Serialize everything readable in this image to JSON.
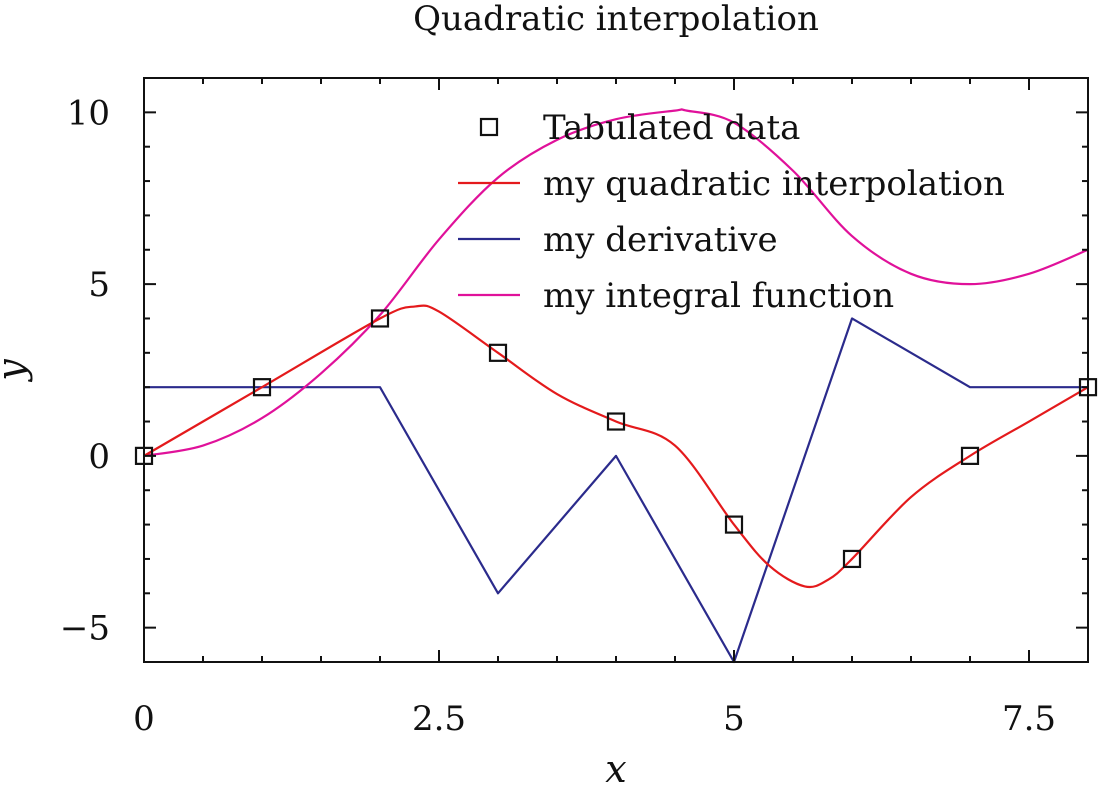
{
  "chart_data": {
    "type": "line",
    "title": "Quadratic interpolation",
    "xlabel": "x",
    "ylabel": "y",
    "xlim": [
      0,
      8
    ],
    "ylim": [
      -6,
      11
    ],
    "xticks": [
      0,
      2.5,
      5,
      7.5
    ],
    "xtick_labels": [
      "0",
      "2.5",
      "5",
      "7.5"
    ],
    "yticks": [
      -5,
      0,
      5,
      10
    ],
    "ytick_labels": [
      "−5",
      "0",
      "5",
      "10"
    ],
    "grid": false,
    "legend_position": "top-right",
    "series": [
      {
        "name": "Tabulated data",
        "kind": "markers",
        "marker": "square",
        "color": "#111111",
        "x": [
          0,
          1,
          2,
          3,
          4,
          5,
          6,
          7,
          8
        ],
        "y": [
          0,
          2,
          4,
          3,
          1,
          -2,
          -3,
          0,
          2
        ]
      },
      {
        "name": "my quadratic interpolation",
        "kind": "line",
        "color": "#e41a1c",
        "x": [
          0,
          1,
          2,
          2.3,
          2.5,
          3,
          3.5,
          4,
          4.5,
          5,
          5.3,
          5.6,
          5.8,
          6,
          6.5,
          7,
          7.5,
          8
        ],
        "y": [
          0,
          2,
          4,
          4.35,
          4.2,
          3,
          1.8,
          1,
          0.3,
          -2,
          -3.2,
          -3.8,
          -3.6,
          -3,
          -1.2,
          0,
          1,
          2
        ]
      },
      {
        "name": "my derivative",
        "kind": "line",
        "color": "#2b2b8c",
        "x": [
          0,
          1,
          2,
          3,
          4,
          5,
          6,
          7,
          8
        ],
        "y": [
          2,
          2,
          2,
          -4,
          0,
          -6,
          4,
          2,
          2
        ]
      },
      {
        "name": "my integral function",
        "kind": "line",
        "color": "#e0119a",
        "x": [
          0,
          0.5,
          1,
          1.5,
          2,
          2.5,
          3,
          3.5,
          4,
          4.5,
          4.6,
          5,
          5.5,
          6,
          6.5,
          7,
          7.5,
          8
        ],
        "y": [
          0,
          0.3,
          1.1,
          2.4,
          4.1,
          6.3,
          8.1,
          9.2,
          9.8,
          10.05,
          10.05,
          9.7,
          8.3,
          6.4,
          5.3,
          5.0,
          5.3,
          6.0
        ]
      }
    ]
  }
}
